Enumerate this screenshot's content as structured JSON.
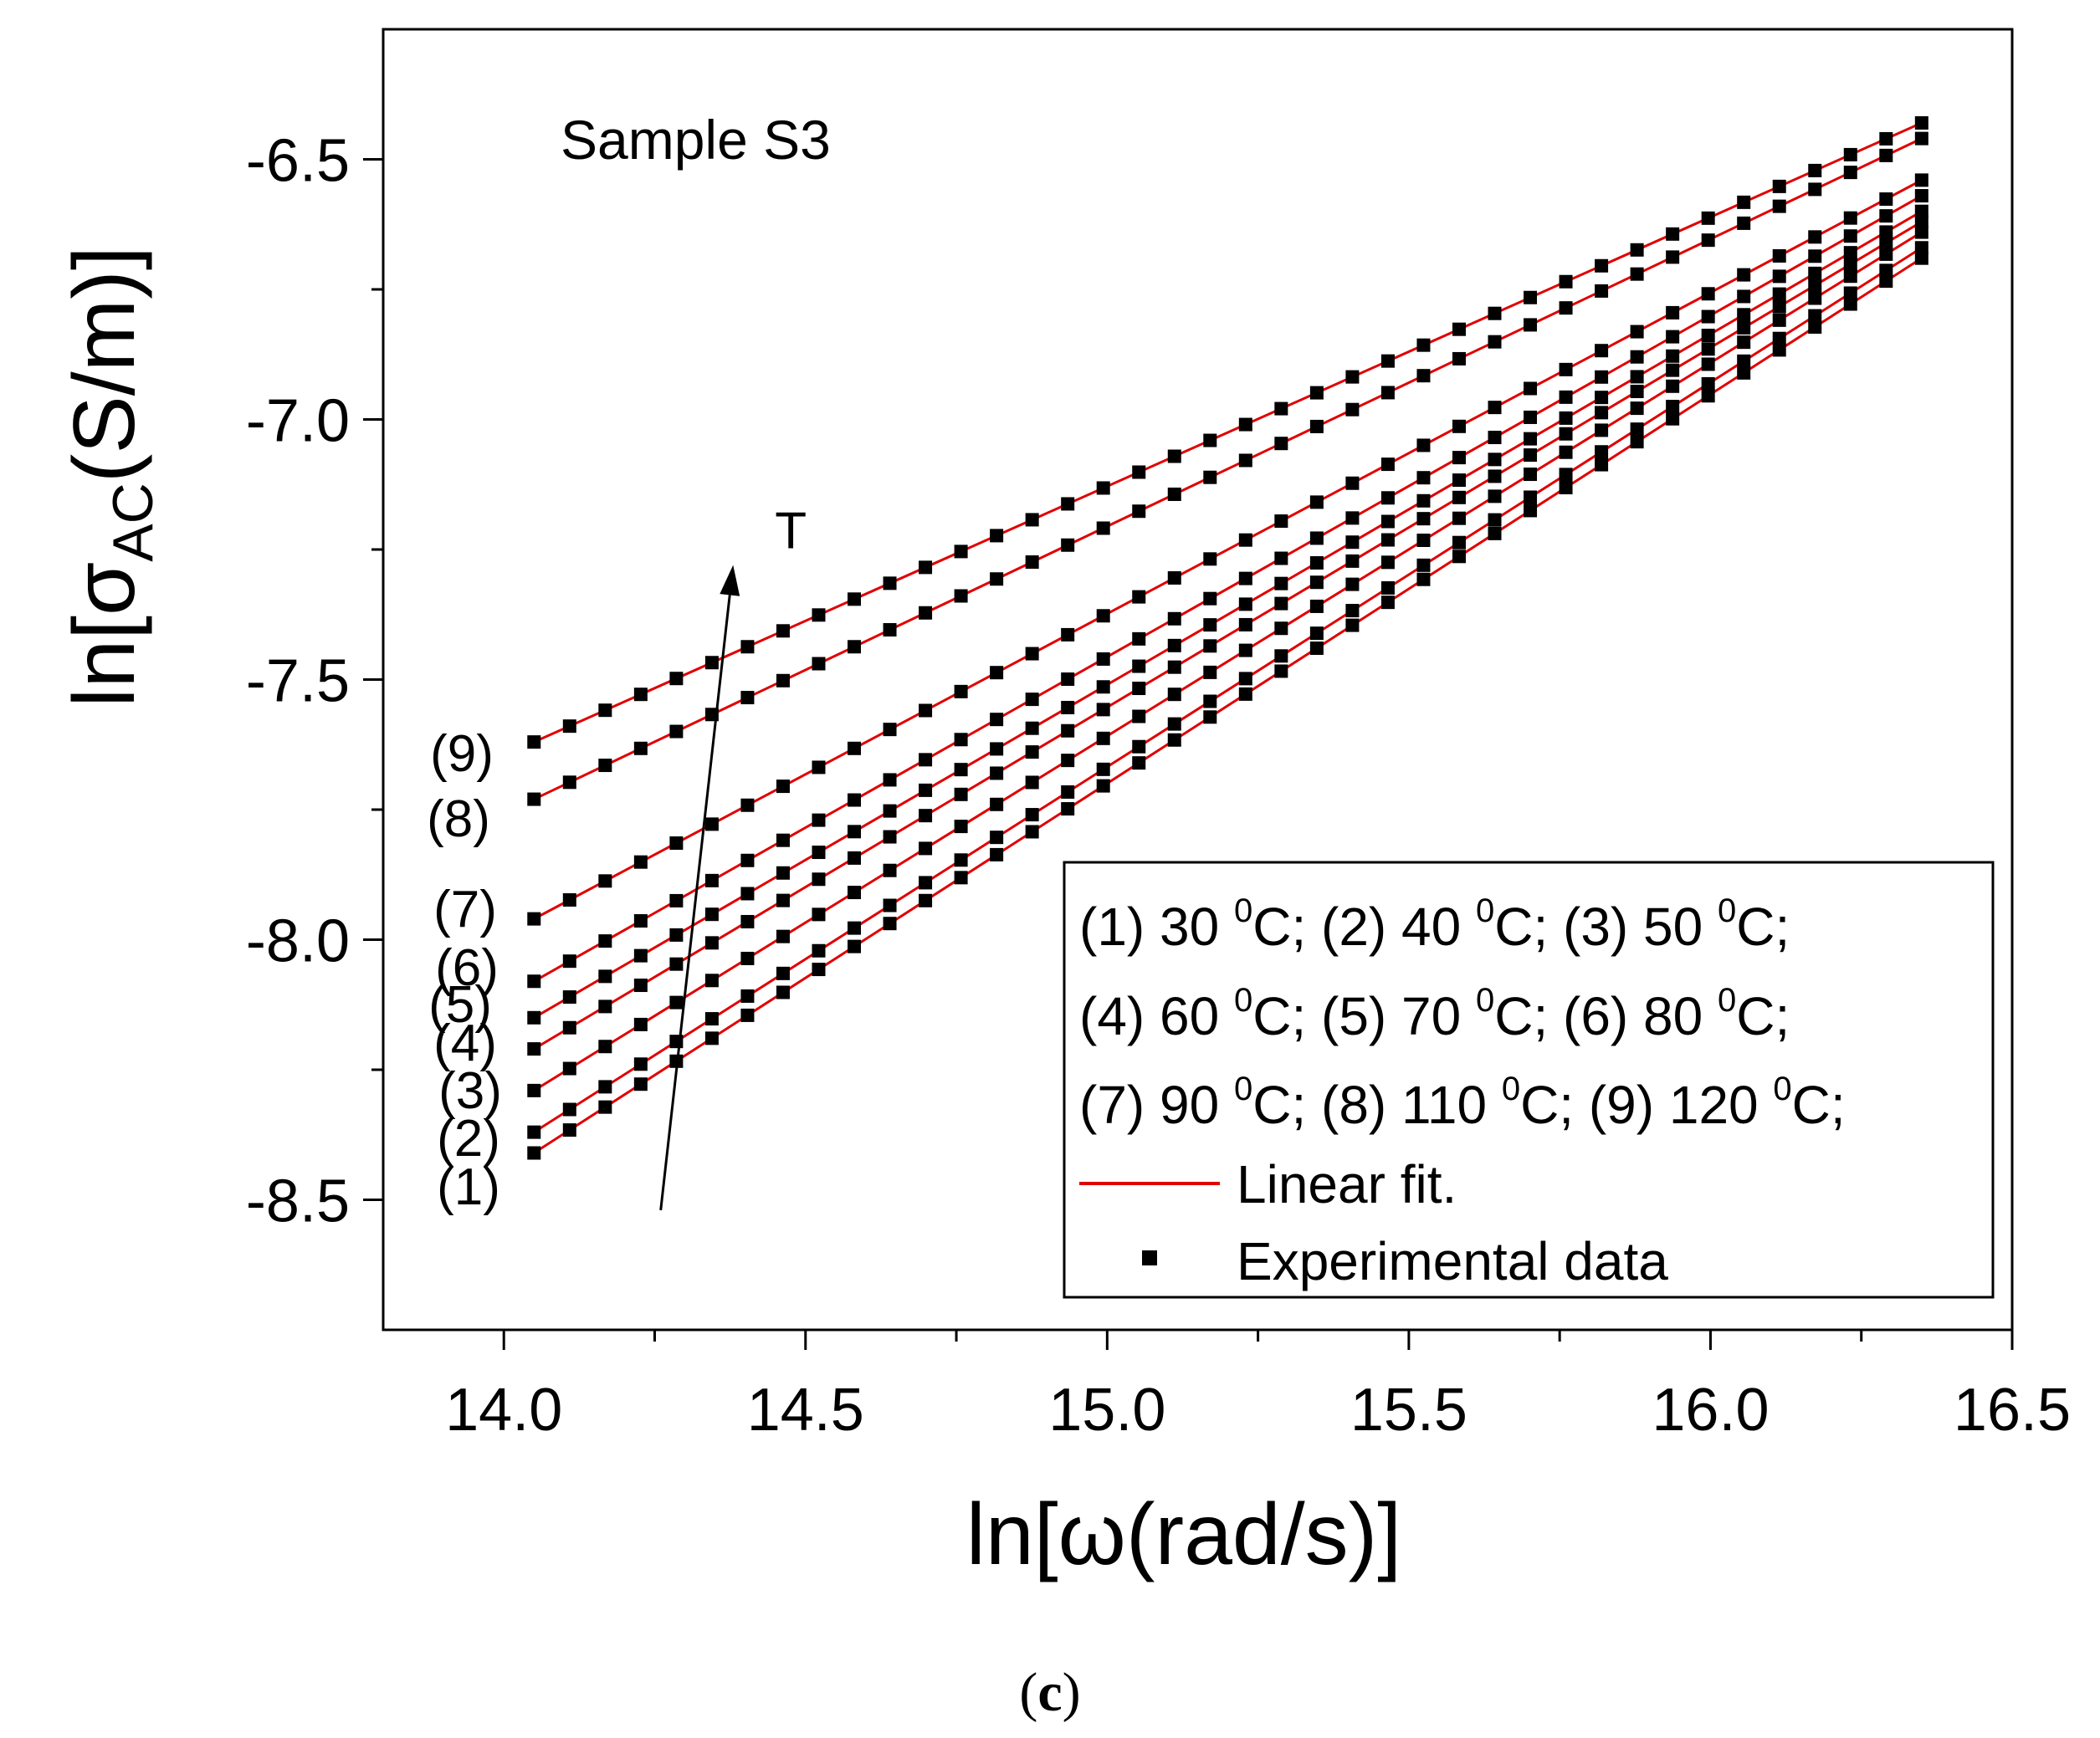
{
  "chart_data": {
    "type": "scatter",
    "title": "Sample S3",
    "xlabel_prefix": "ln[",
    "xlabel_symbol": "ω",
    "xlabel_suffix": "(rad/s)]",
    "ylabel_prefix": "ln[σ",
    "ylabel_subscript": "AC",
    "ylabel_suffix": "(S/m)]",
    "xlim": [
      13.8,
      16.5
    ],
    "ylim": [
      -8.75,
      -6.25
    ],
    "x_ticks": [
      14.0,
      14.5,
      15.0,
      15.5,
      16.0,
      16.5
    ],
    "x_tick_labels": [
      "14.0",
      "14.5",
      "15.0",
      "15.5",
      "16.0",
      "16.5"
    ],
    "y_ticks": [
      -8.5,
      -8.0,
      -7.5,
      -7.0,
      -6.5
    ],
    "y_tick_labels": [
      "-8.5",
      "-8.0",
      "-7.5",
      "-7.0",
      "-6.5"
    ],
    "x_points": {
      "start": 14.05,
      "end": 16.35,
      "count": 40
    },
    "series": [
      {
        "label": "(1)",
        "temperature": "30 °C",
        "start": -8.41,
        "end": -6.69
      },
      {
        "label": "(2)",
        "temperature": "40 °C",
        "start": -8.37,
        "end": -6.67
      },
      {
        "label": "(3)",
        "temperature": "50 °C",
        "start": -8.29,
        "end": -6.64
      },
      {
        "label": "(4)",
        "temperature": "60 °C",
        "start": -8.21,
        "end": -6.62
      },
      {
        "label": "(5)",
        "temperature": "70 °C",
        "start": -8.15,
        "end": -6.6
      },
      {
        "label": "(6)",
        "temperature": "80 °C",
        "start": -8.08,
        "end": -6.57
      },
      {
        "label": "(7)",
        "temperature": "90 °C",
        "start": -7.96,
        "end": -6.54
      },
      {
        "label": "(8)",
        "temperature": "110 °C",
        "start": -7.73,
        "end": -6.46
      },
      {
        "label": "(9)",
        "temperature": "120 °C",
        "start": -7.62,
        "end": -6.43
      }
    ],
    "arrow": {
      "label": "T",
      "from": [
        14.26,
        -8.52
      ],
      "to": [
        14.38,
        -7.28
      ]
    },
    "legend": {
      "position": "bottom-right",
      "rows": [
        [
          {
            "n": "(1) 30 ",
            "unit": "C;"
          },
          {
            "n": " (2) 40 ",
            "unit": "C;"
          },
          {
            "n": " (3) 50 ",
            "unit": "C;"
          }
        ],
        [
          {
            "n": "(4) 60 ",
            "unit": "C;"
          },
          {
            "n": " (5) 70 ",
            "unit": "C;"
          },
          {
            "n": " (6) 80 ",
            "unit": "C;"
          }
        ],
        [
          {
            "n": "(7) 90 ",
            "unit": "C;"
          },
          {
            "n": " (8) 110 ",
            "unit": "C;"
          },
          {
            "n": " (9) 120 ",
            "unit": "C;"
          }
        ]
      ],
      "degree_symbol": "0",
      "fit_label": "Linear fit.",
      "data_label": "Experimental data"
    },
    "colors": {
      "fit_line": "#e00000",
      "points": "#000000",
      "axes": "#000000"
    }
  },
  "caption": {
    "open": "(",
    "letter": "c",
    "close": ")"
  }
}
